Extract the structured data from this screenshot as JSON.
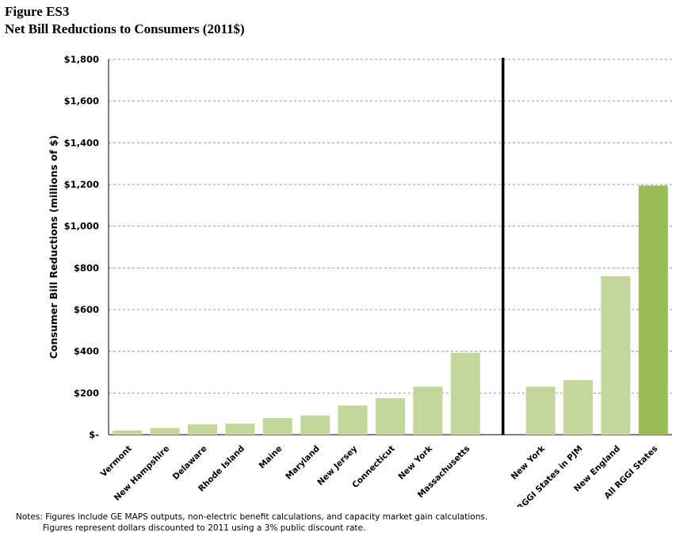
{
  "figure": {
    "label": "Figure ES3",
    "title": "Net Bill Reductions to Consumers (2011$)"
  },
  "chart_data": {
    "type": "bar",
    "ylabel": "Consumer Bill Reductions (millions of $)",
    "xlabel": "",
    "ylim": [
      0,
      1800
    ],
    "yticks": [
      0,
      200,
      400,
      600,
      800,
      1000,
      1200,
      1400,
      1600,
      1800
    ],
    "ytick_labels": [
      "$-",
      "$200",
      "$400",
      "$600",
      "$800",
      "$1,000",
      "$1,200",
      "$1,400",
      "$1,600",
      "$1,800"
    ],
    "grid": true,
    "categories": [
      "Vermont",
      "New Hampshire",
      "Delaware",
      "Rhode Island",
      "Maine",
      "Maryland",
      "New Jersey",
      "Connecticut",
      "New York",
      "Massachusetts",
      "New York",
      "RGGI States in PJM",
      "New England",
      "All RGGI States"
    ],
    "values": [
      20,
      32,
      50,
      53,
      80,
      92,
      140,
      175,
      230,
      393,
      230,
      262,
      760,
      1195
    ],
    "groups": [
      {
        "categories": [
          0,
          1,
          2,
          3,
          4,
          5,
          6,
          7,
          8,
          9
        ],
        "color": "#c4d79b"
      },
      {
        "categories": [
          10,
          11,
          12
        ],
        "color": "#c4d79b"
      },
      {
        "categories": [
          13
        ],
        "color": "#9bbb59"
      }
    ],
    "divider_after_index": 9
  },
  "notes": {
    "line1": "Notes: Figures include GE MAPS outputs, non-electric benefit calculations, and capacity market gain calculations.",
    "line2": "Figures represent dollars discounted to 2011 using a 3% public discount rate."
  }
}
